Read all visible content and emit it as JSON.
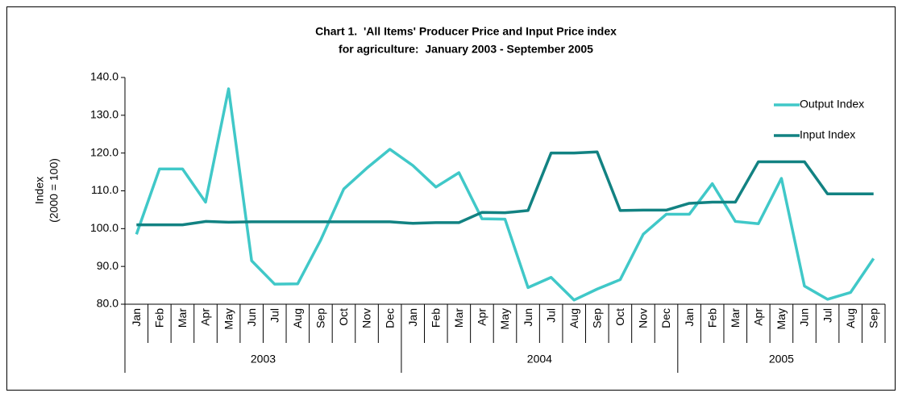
{
  "chart_data": {
    "type": "line",
    "title": [
      "Chart 1.  'All Items' Producer Price and Input Price index",
      "for agriculture:  January 2003 - September 2005"
    ],
    "y_label": [
      "Index",
      "(2000 = 100)"
    ],
    "categories": [
      "Jan",
      "Feb",
      "Mar",
      "Apr",
      "May",
      "Jun",
      "Jul",
      "Aug",
      "Sep",
      "Oct",
      "Nov",
      "Dec",
      "Jan",
      "Feb",
      "Mar",
      "Apr",
      "May",
      "Jun",
      "Jul",
      "Aug",
      "Sep",
      "Oct",
      "Nov",
      "Dec",
      "Jan",
      "Feb",
      "Mar",
      "Apr",
      "May",
      "Jun",
      "Jul",
      "Aug",
      "Sep"
    ],
    "category_groups": [
      "2003",
      "2004",
      "2005"
    ],
    "series": [
      {
        "name": "Output Index",
        "color": "#40c8c8",
        "values": [
          98.5,
          115.8,
          115.8,
          107,
          137,
          91.5,
          85.3,
          85.4,
          97,
          110.5,
          116,
          121,
          116.7,
          111,
          114.8,
          102.6,
          102.5,
          84.4,
          87.1,
          81.1,
          84,
          86.5,
          98.5,
          103.8,
          103.8,
          111.9,
          101.9,
          101.3,
          113.3,
          84.8,
          81.3,
          83.1,
          92.1
        ]
      },
      {
        "name": "Input Index",
        "color": "#128282",
        "values": [
          101,
          101,
          101,
          101.9,
          101.7,
          101.8,
          101.8,
          101.8,
          101.8,
          101.8,
          101.8,
          101.8,
          101.4,
          101.6,
          101.6,
          104.3,
          104.2,
          104.8,
          120,
          120,
          120.3,
          104.8,
          104.9,
          104.9,
          106.7,
          107,
          107,
          117.7,
          117.7,
          117.7,
          109.2,
          109.2,
          109.2
        ]
      }
    ],
    "ylim": [
      80,
      140
    ],
    "yticks": [
      {
        "value": 80,
        "label": "80.0"
      },
      {
        "value": 90,
        "label": "90.0"
      },
      {
        "value": 100,
        "label": "100.0"
      },
      {
        "value": 110,
        "label": "110.0"
      },
      {
        "value": 120,
        "label": "120.0"
      },
      {
        "value": 130,
        "label": "130.0"
      },
      {
        "value": 140,
        "label": "140.0"
      }
    ],
    "legend": "top-right"
  }
}
